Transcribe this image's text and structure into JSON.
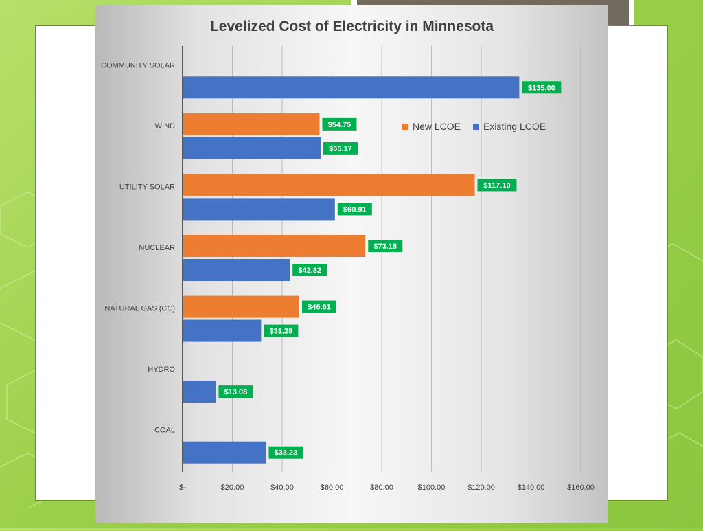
{
  "colors": {
    "new": "#ed7d31",
    "existing": "#4472c4",
    "label_bg": "#00b050",
    "grid": "#7f7f7f",
    "axis_text": "#404040"
  },
  "chart_data": {
    "type": "bar",
    "orientation": "horizontal",
    "title": "Levelized Cost of Electricity in Minnesota",
    "categories": [
      "COMMUNITY SOLAR",
      "WIND",
      "UTILITY SOLAR",
      "NUCLEAR",
      "NATURAL GAS (CC)",
      "HYDRO",
      "COAL"
    ],
    "series": [
      {
        "name": "New LCOE",
        "color": "#ed7d31",
        "values": [
          null,
          54.75,
          117.1,
          73.18,
          46.61,
          null,
          null
        ],
        "labels": [
          null,
          "$54.75",
          "$117.10",
          "$73.18",
          "$46.61",
          null,
          null
        ]
      },
      {
        "name": "Existing LCOE",
        "color": "#4472c4",
        "values": [
          135.0,
          55.17,
          60.91,
          42.82,
          31.28,
          13.08,
          33.23
        ],
        "labels": [
          "$135.00",
          "$55.17",
          "$60.91",
          "$42.82",
          "$31.28",
          "$13.08",
          "$33.23"
        ]
      }
    ],
    "xlim": [
      0,
      160
    ],
    "xticks": [
      0,
      20,
      40,
      60,
      80,
      100,
      120,
      140,
      160
    ],
    "xtick_labels": [
      "$-",
      "$20.00",
      "$40.00",
      "$60.00",
      "$80.00",
      "$100.00",
      "$120.00",
      "$140.00",
      "$160.00"
    ],
    "grid": true,
    "legend_position": "top-right",
    "data_labels": true
  }
}
